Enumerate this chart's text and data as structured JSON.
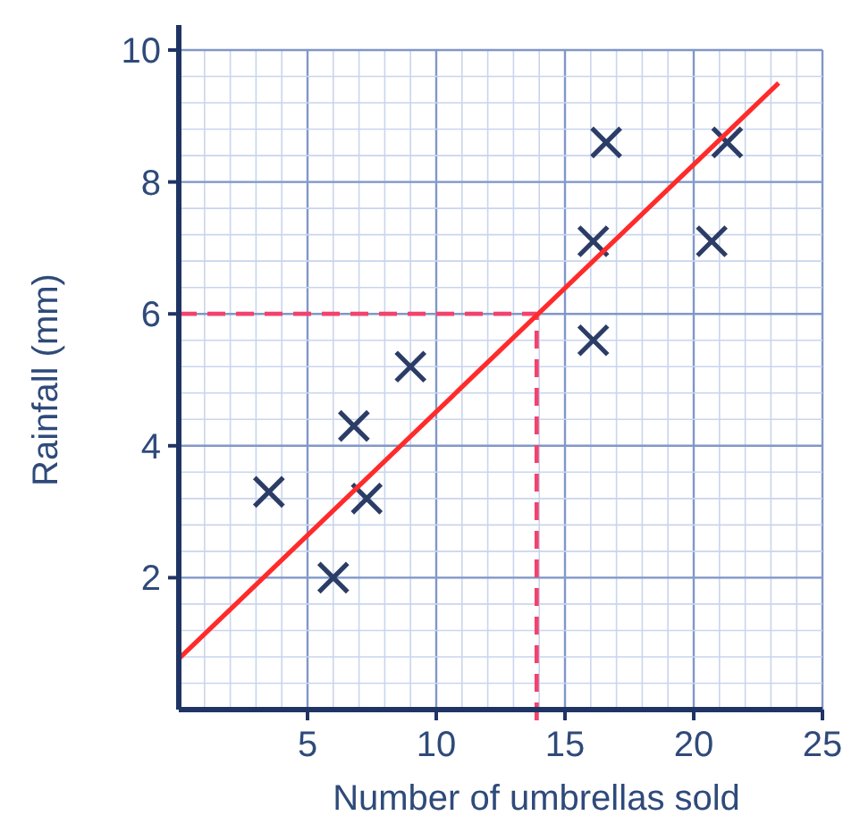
{
  "chart_data": {
    "type": "scatter",
    "xlabel": "Number of umbrellas sold",
    "ylabel": "Rainfall (mm)",
    "xlim": [
      0,
      25
    ],
    "ylim": [
      0,
      10
    ],
    "xticks": [
      5,
      10,
      15,
      20,
      25
    ],
    "yticks": [
      2,
      4,
      6,
      8,
      10
    ],
    "grid": true,
    "marker": "cross",
    "series": [
      {
        "type": "scatter",
        "color": "#2b3d66",
        "x": [
          3.5,
          6,
          6.8,
          7.3,
          9,
          16.1,
          16.1,
          16.6,
          20.7,
          21.3
        ],
        "values": [
          3.3,
          2,
          4.3,
          3.2,
          5.2,
          5.6,
          7.1,
          8.6,
          7.1,
          8.6
        ]
      },
      {
        "type": "line",
        "color": "#ff2b2b",
        "x": [
          0,
          23.3
        ],
        "values": [
          0.77,
          9.5
        ],
        "marker": "none"
      }
    ],
    "ref_lines": [
      {
        "axis": "y",
        "value": 6,
        "color": "#f2426e",
        "line_style": "dashed"
      },
      {
        "axis": "x",
        "value": 13.9,
        "color": "#f2426e",
        "line_style": "dashed"
      }
    ]
  }
}
